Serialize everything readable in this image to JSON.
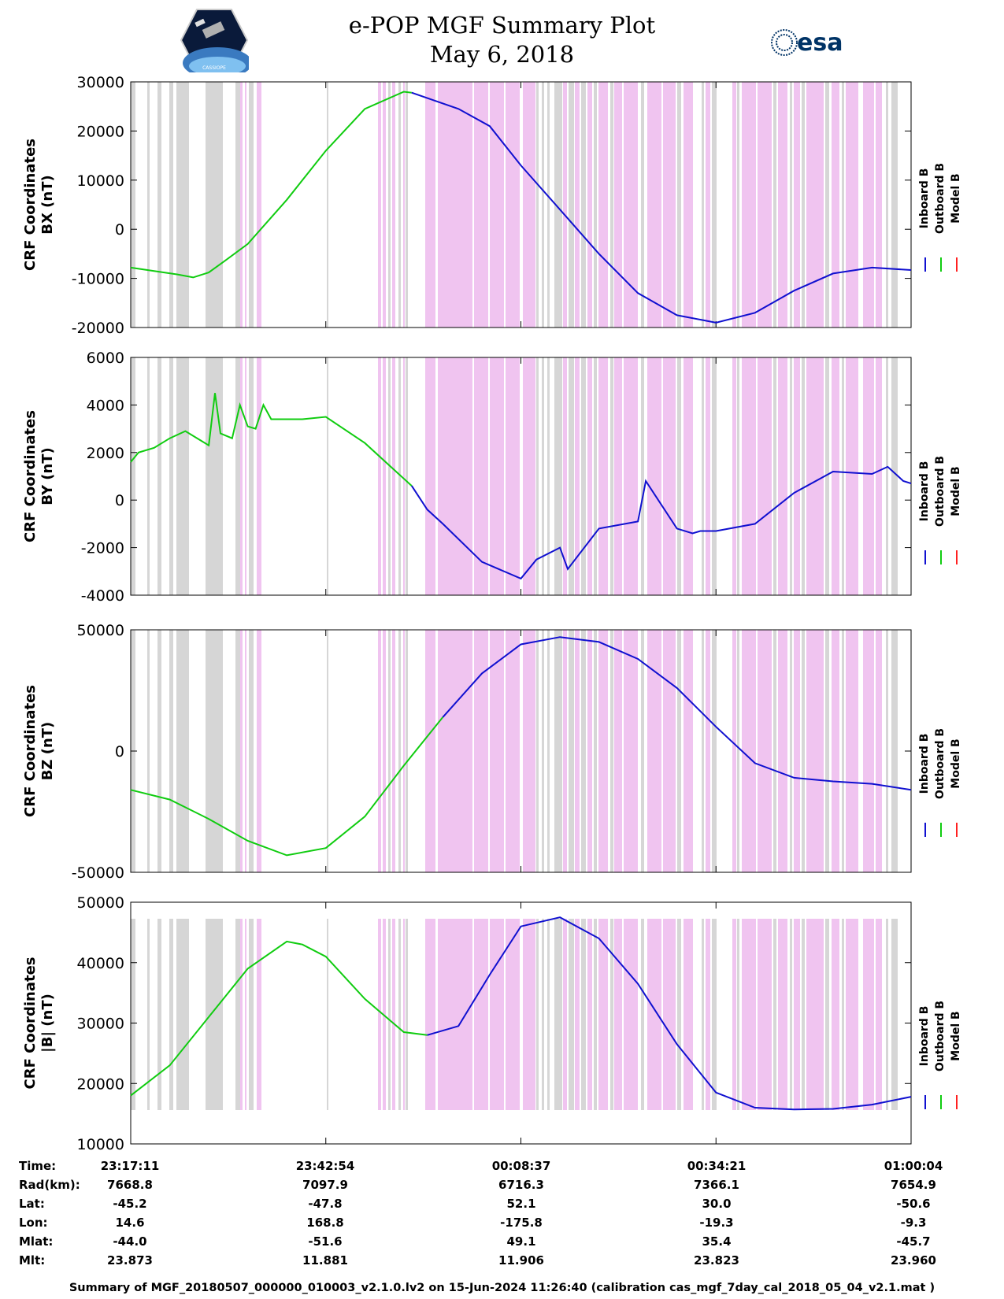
{
  "header": {
    "title_line1": "e-POP MGF Summary Plot",
    "title_line2": "May 6, 2018",
    "logo_left_text": "CASSIOPE",
    "logo_right_text": "esa"
  },
  "legend": [
    "Inboard B",
    "Outboard B",
    "Model B"
  ],
  "colors": {
    "inboard": "#1010d0",
    "outboard": "#10cc10",
    "model": "#ff2020",
    "gray_band": "#d6d6d6",
    "pink_band": "#f0c4f0"
  },
  "chart_data": [
    {
      "type": "line",
      "id": "bx",
      "ylabel_line1": "CRF Coordinates",
      "ylabel_line2": "BX (nT)",
      "ylim": [
        -20000,
        30000
      ],
      "yticks": [
        "-20000",
        "-10000",
        "0",
        "10000",
        "20000",
        "30000"
      ],
      "series": [
        {
          "name": "Outboard B",
          "x": [
            0,
            0.03,
            0.06,
            0.08,
            0.1,
            0.12,
            0.15,
            0.2,
            0.25,
            0.3,
            0.35,
            0.36
          ],
          "y": [
            -7800,
            -8500,
            -9200,
            -9800,
            -8800,
            -6500,
            -3000,
            6000,
            16000,
            24500,
            28000,
            27800
          ]
        },
        {
          "name": "Inboard B",
          "x": [
            0.36,
            0.42,
            0.46,
            0.5,
            0.55,
            0.6,
            0.65,
            0.7,
            0.75,
            0.8,
            0.85,
            0.9,
            0.95,
            1.0
          ],
          "y": [
            27800,
            24500,
            21000,
            13000,
            4000,
            -5000,
            -13000,
            -17500,
            -19000,
            -17000,
            -12500,
            -9000,
            -7800,
            -8300
          ]
        }
      ]
    },
    {
      "type": "line",
      "id": "by",
      "ylabel_line1": "CRF Coordinates",
      "ylabel_line2": "BY (nT)",
      "ylim": [
        -4000,
        6000
      ],
      "yticks": [
        "-4000",
        "-2000",
        "0",
        "2000",
        "4000",
        "6000"
      ],
      "series": [
        {
          "name": "Outboard B",
          "x": [
            0,
            0.01,
            0.03,
            0.05,
            0.07,
            0.1,
            0.108,
            0.115,
            0.13,
            0.14,
            0.15,
            0.16,
            0.17,
            0.18,
            0.2,
            0.22,
            0.25,
            0.3,
            0.36
          ],
          "y": [
            1600,
            2000,
            2200,
            2600,
            2900,
            2300,
            4500,
            2800,
            2600,
            4000,
            3100,
            3000,
            4000,
            3400,
            3400,
            3400,
            3500,
            2400,
            600
          ]
        },
        {
          "name": "Inboard B",
          "x": [
            0.36,
            0.38,
            0.4,
            0.45,
            0.5,
            0.52,
            0.55,
            0.56,
            0.6,
            0.65,
            0.66,
            0.7,
            0.72,
            0.73,
            0.75,
            0.8,
            0.85,
            0.9,
            0.95,
            0.97,
            0.99,
            1.0
          ],
          "y": [
            600,
            -400,
            -1000,
            -2600,
            -3300,
            -2500,
            -2000,
            -2900,
            -1200,
            -900,
            800,
            -1200,
            -1400,
            -1300,
            -1300,
            -1000,
            300,
            1200,
            1100,
            1400,
            800,
            700
          ]
        }
      ]
    },
    {
      "type": "line",
      "id": "bz",
      "ylabel_line1": "CRF Coordinates",
      "ylabel_line2": "BZ (nT)",
      "ylim": [
        -50000,
        50000
      ],
      "yticks": [
        "-50000",
        "0",
        "50000"
      ],
      "series": [
        {
          "name": "Outboard B",
          "x": [
            0,
            0.05,
            0.1,
            0.15,
            0.2,
            0.25,
            0.3,
            0.35,
            0.4
          ],
          "y": [
            -16000,
            -20000,
            -28000,
            -37000,
            -43000,
            -40000,
            -27000,
            -6000,
            14000
          ]
        },
        {
          "name": "Inboard B",
          "x": [
            0.4,
            0.45,
            0.5,
            0.55,
            0.6,
            0.65,
            0.7,
            0.75,
            0.8,
            0.85,
            0.9,
            0.95,
            1.0
          ],
          "y": [
            14000,
            32000,
            44000,
            47000,
            45000,
            38000,
            26000,
            10000,
            -5000,
            -11000,
            -12500,
            -13500,
            -16000
          ]
        }
      ]
    },
    {
      "type": "line",
      "id": "btotal",
      "ylabel_line1": "CRF Coordinates",
      "ylabel_line2": "|B| (nT)",
      "ylim": [
        10000,
        50000
      ],
      "yticks": [
        "10000",
        "20000",
        "30000",
        "40000",
        "50000"
      ],
      "series": [
        {
          "name": "Outboard B",
          "x": [
            0,
            0.05,
            0.1,
            0.15,
            0.2,
            0.22,
            0.25,
            0.3,
            0.35,
            0.38
          ],
          "y": [
            18000,
            23000,
            31000,
            39000,
            43500,
            43000,
            41000,
            34000,
            28500,
            28000
          ]
        },
        {
          "name": "Inboard B",
          "x": [
            0.38,
            0.42,
            0.46,
            0.5,
            0.55,
            0.6,
            0.65,
            0.7,
            0.75,
            0.8,
            0.85,
            0.9,
            0.95,
            1.0
          ],
          "y": [
            28000,
            29500,
            38000,
            46000,
            47500,
            44000,
            36500,
            26500,
            18500,
            16000,
            15700,
            15800,
            16500,
            17800
          ]
        }
      ]
    }
  ],
  "time_table": {
    "labels": [
      "Time:",
      "Rad(km):",
      "Lat:",
      "Lon:",
      "Mlat:",
      "Mlt:"
    ],
    "columns": [
      [
        "23:17:11",
        "7668.8",
        "-45.2",
        "14.6",
        "-44.0",
        "23.873"
      ],
      [
        "23:42:54",
        "7097.9",
        "-47.8",
        "168.8",
        "-51.6",
        "11.881"
      ],
      [
        "00:08:37",
        "6716.3",
        "52.1",
        "-175.8",
        "49.1",
        "11.906"
      ],
      [
        "00:34:21",
        "7366.1",
        "30.0",
        "-19.3",
        "35.4",
        "23.823"
      ],
      [
        "01:00:04",
        "7654.9",
        "-50.6",
        "-9.3",
        "-45.7",
        "23.960"
      ]
    ]
  },
  "footer": "Summary of MGF_20180507_000000_010003_v2.1.0.lv2 on 15-Jun-2024 11:26:40 (calibration cas_mgf_7day_cal_2018_05_04_v2.1.mat )"
}
